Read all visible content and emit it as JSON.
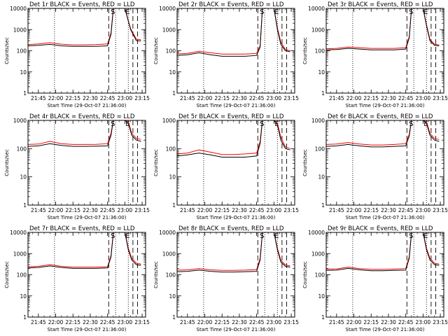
{
  "figure": {
    "background": "#ffffff",
    "colors": {
      "events": "#000000",
      "lld": "#ff0000",
      "axes": "#000000"
    }
  },
  "chart_data": [
    {
      "type": "line",
      "title": "Det 1r BLACK = Events, RED = LLD",
      "xlabel": "Start Time (29-Oct-07 21:36:00)",
      "ylabel": "Counts/sec",
      "yscale": "log",
      "ylim": [
        1,
        10000
      ],
      "x_ticks": [
        "21:45",
        "22:00",
        "22:15",
        "22:30",
        "22:45",
        "23:00",
        "23:15"
      ],
      "y_ticks": [
        "1",
        "10",
        "100",
        "1000",
        "10000"
      ],
      "markers": [
        "S",
        "E"
      ],
      "x": [
        "21:36",
        "21:45",
        "21:55",
        "22:05",
        "22:15",
        "22:25",
        "22:35",
        "22:45",
        "22:48",
        "22:50",
        "22:55",
        "22:57",
        "23:00",
        "23:05",
        "23:10",
        "23:14"
      ],
      "series": [
        {
          "name": "Events",
          "values": [
            170,
            180,
            200,
            170,
            160,
            160,
            162,
            170,
            600,
            10000,
            10000,
            10000,
            10000,
            1000,
            300,
            290
          ]
        },
        {
          "name": "LLD",
          "values": [
            195,
            210,
            240,
            205,
            190,
            190,
            195,
            210,
            700,
            10000,
            10000,
            10000,
            10000,
            1100,
            350,
            330
          ]
        }
      ],
      "dotted_lines_at": [
        "21:59",
        "22:52",
        "23:03"
      ],
      "dashed_lines_at": [
        "22:46",
        "23:07",
        "23:11"
      ]
    },
    {
      "type": "line",
      "title": "Det 2r BLACK = Events, RED = LLD",
      "xlabel": "Start Time (29-Oct-07 21:36:00)",
      "ylabel": "Counts/sec",
      "yscale": "log",
      "ylim": [
        1,
        10000
      ],
      "x_ticks": [
        "21:45",
        "22:00",
        "22:15",
        "22:30",
        "22:45",
        "23:00",
        "23:15"
      ],
      "y_ticks": [
        "1",
        "10",
        "100",
        "1000",
        "10000"
      ],
      "markers": [
        "S",
        "E"
      ],
      "x": [
        "21:36",
        "21:45",
        "21:55",
        "22:05",
        "22:15",
        "22:25",
        "22:35",
        "22:45",
        "22:48",
        "22:50",
        "22:55",
        "23:00",
        "23:03",
        "23:06",
        "23:10",
        "23:14"
      ],
      "series": [
        {
          "name": "Events",
          "values": [
            60,
            65,
            80,
            65,
            55,
            55,
            55,
            60,
            150,
            10000,
            10000,
            10000,
            1000,
            200,
            100,
            90
          ]
        },
        {
          "name": "LLD",
          "values": [
            70,
            75,
            95,
            80,
            70,
            70,
            70,
            75,
            170,
            10000,
            10000,
            10000,
            1200,
            250,
            115,
            100
          ]
        }
      ],
      "dotted_lines_at": [
        "21:59",
        "22:52",
        "23:03"
      ],
      "dashed_lines_at": [
        "22:46",
        "23:07",
        "23:11"
      ]
    },
    {
      "type": "line",
      "title": "Det 3r BLACK = Events, RED = LLD",
      "xlabel": "Start Time (29-Oct-07 21:36:00)",
      "ylabel": "Counts/sec",
      "yscale": "log",
      "ylim": [
        1,
        10000
      ],
      "x_ticks": [
        "21:45",
        "22:00",
        "22:15",
        "22:30",
        "22:45",
        "23:00",
        "23:15"
      ],
      "y_ticks": [
        "1",
        "10",
        "100",
        "1000",
        "10000"
      ],
      "markers": [
        "S",
        "E"
      ],
      "x": [
        "21:36",
        "21:45",
        "21:55",
        "22:05",
        "22:15",
        "22:25",
        "22:35",
        "22:45",
        "22:48",
        "22:50",
        "22:55",
        "23:00",
        "23:03",
        "23:06",
        "23:10",
        "23:14"
      ],
      "series": [
        {
          "name": "Events",
          "values": [
            110,
            115,
            130,
            120,
            110,
            110,
            110,
            120,
            400,
            10000,
            10000,
            10000,
            1500,
            300,
            180,
            170
          ]
        },
        {
          "name": "LLD",
          "values": [
            125,
            130,
            150,
            140,
            130,
            130,
            130,
            140,
            450,
            10000,
            10000,
            10000,
            1700,
            350,
            200,
            190
          ]
        }
      ],
      "dotted_lines_at": [
        "21:59",
        "22:52",
        "23:03"
      ],
      "dashed_lines_at": [
        "22:46",
        "23:07",
        "23:11"
      ]
    },
    {
      "type": "line",
      "title": "Det 4r BLACK = Events, RED = LLD",
      "xlabel": "Start Time (29-Oct-07 21:36:00)",
      "ylabel": "Counts/sec",
      "yscale": "log",
      "ylim": [
        1,
        1000
      ],
      "x_ticks": [
        "21:45",
        "22:00",
        "22:15",
        "22:30",
        "22:45",
        "23:00",
        "23:15"
      ],
      "y_ticks": [
        "1",
        "10",
        "100",
        "1000"
      ],
      "markers": [
        "S",
        "E"
      ],
      "x": [
        "21:36",
        "21:45",
        "21:55",
        "22:05",
        "22:15",
        "22:25",
        "22:35",
        "22:45",
        "22:48",
        "22:50",
        "22:55",
        "23:00",
        "23:03",
        "23:06",
        "23:10",
        "23:14"
      ],
      "series": [
        {
          "name": "Events",
          "values": [
            120,
            125,
            150,
            130,
            120,
            120,
            122,
            125,
            300,
            1000,
            1000,
            1000,
            800,
            300,
            200,
            180
          ]
        },
        {
          "name": "LLD",
          "values": [
            140,
            145,
            180,
            150,
            140,
            140,
            142,
            150,
            350,
            1000,
            1000,
            1000,
            900,
            350,
            230,
            210
          ]
        }
      ],
      "dotted_lines_at": [
        "21:59",
        "22:52",
        "23:03"
      ],
      "dashed_lines_at": [
        "22:46",
        "23:07",
        "23:11"
      ]
    },
    {
      "type": "line",
      "title": "Det 5r BLACK = Events, RED = LLD",
      "xlabel": "Start Time (29-Oct-07 21:36:00)",
      "ylabel": "Counts/sec",
      "yscale": "log",
      "ylim": [
        1,
        1000
      ],
      "x_ticks": [
        "21:45",
        "22:00",
        "22:15",
        "22:30",
        "22:45",
        "23:00",
        "23:15"
      ],
      "y_ticks": [
        "1",
        "10",
        "100",
        "1000"
      ],
      "markers": [
        "S",
        "E"
      ],
      "x": [
        "21:36",
        "21:45",
        "21:55",
        "22:05",
        "22:15",
        "22:25",
        "22:35",
        "22:45",
        "22:48",
        "22:50",
        "22:55",
        "23:00",
        "23:03",
        "23:06",
        "23:10",
        "23:14"
      ],
      "series": [
        {
          "name": "Events",
          "values": [
            55,
            60,
            70,
            60,
            50,
            50,
            50,
            55,
            150,
            1000,
            1000,
            1000,
            700,
            200,
            100,
            90
          ]
        },
        {
          "name": "LLD",
          "values": [
            65,
            70,
            90,
            75,
            62,
            62,
            65,
            70,
            180,
            1000,
            1000,
            1000,
            800,
            250,
            115,
            100
          ]
        }
      ],
      "dotted_lines_at": [
        "21:59",
        "22:52",
        "23:03"
      ],
      "dashed_lines_at": [
        "22:46",
        "23:07",
        "23:11"
      ]
    },
    {
      "type": "line",
      "title": "Det 6r BLACK = Events, RED = LLD",
      "xlabel": "Start Time (29-Oct-07 21:36:00)",
      "ylabel": "Counts/sec",
      "yscale": "log",
      "ylim": [
        1,
        1000
      ],
      "x_ticks": [
        "21:45",
        "22:00",
        "22:15",
        "22:30",
        "22:45",
        "23:00",
        "23:15"
      ],
      "y_ticks": [
        "1",
        "10",
        "100",
        "1000"
      ],
      "markers": [
        "S",
        "E"
      ],
      "x": [
        "21:36",
        "21:45",
        "21:55",
        "22:05",
        "22:15",
        "22:25",
        "22:35",
        "22:45",
        "22:48",
        "22:50",
        "22:55",
        "23:00",
        "23:03",
        "23:06",
        "23:10",
        "23:14"
      ],
      "series": [
        {
          "name": "Events",
          "values": [
            120,
            125,
            140,
            125,
            115,
            115,
            120,
            125,
            280,
            1000,
            1000,
            1000,
            800,
            300,
            200,
            180
          ]
        },
        {
          "name": "LLD",
          "values": [
            140,
            145,
            165,
            145,
            135,
            135,
            140,
            150,
            320,
            1000,
            1000,
            1000,
            900,
            350,
            230,
            210
          ]
        }
      ],
      "dotted_lines_at": [
        "21:59",
        "22:52",
        "23:03"
      ],
      "dashed_lines_at": [
        "22:46",
        "23:07",
        "23:11"
      ]
    },
    {
      "type": "line",
      "title": "Det 7r BLACK = Events, RED = LLD",
      "xlabel": "Start Time (29-Oct-07 21:36:00)",
      "ylabel": "Counts/sec",
      "yscale": "log",
      "ylim": [
        1,
        10000
      ],
      "x_ticks": [
        "21:45",
        "22:00",
        "22:15",
        "22:30",
        "22:45",
        "23:00",
        "23:15"
      ],
      "y_ticks": [
        "1",
        "10",
        "100",
        "1000",
        "10000"
      ],
      "markers": [
        "S",
        "E"
      ],
      "x": [
        "21:36",
        "21:45",
        "21:55",
        "22:05",
        "22:15",
        "22:25",
        "22:35",
        "22:45",
        "22:48",
        "22:50",
        "22:55",
        "23:00",
        "23:03",
        "23:06",
        "23:10",
        "23:14"
      ],
      "series": [
        {
          "name": "Events",
          "values": [
            210,
            220,
            260,
            220,
            200,
            200,
            200,
            210,
            700,
            10000,
            10000,
            10000,
            1500,
            500,
            300,
            280
          ]
        },
        {
          "name": "LLD",
          "values": [
            240,
            250,
            300,
            250,
            230,
            230,
            230,
            240,
            800,
            10000,
            10000,
            10000,
            1800,
            600,
            350,
            320
          ]
        }
      ],
      "dotted_lines_at": [
        "21:59",
        "22:52",
        "23:03"
      ],
      "dashed_lines_at": [
        "22:46",
        "23:07",
        "23:11"
      ]
    },
    {
      "type": "line",
      "title": "Det 8r BLACK = Events, RED = LLD",
      "xlabel": "Start Time (29-Oct-07 21:36:00)",
      "ylabel": "Counts/sec",
      "yscale": "log",
      "ylim": [
        1,
        10000
      ],
      "x_ticks": [
        "21:45",
        "22:00",
        "22:15",
        "22:30",
        "22:45",
        "23:00",
        "23:15"
      ],
      "y_ticks": [
        "1",
        "10",
        "100",
        "1000",
        "10000"
      ],
      "markers": [
        "S",
        "E"
      ],
      "x": [
        "21:36",
        "21:45",
        "21:55",
        "22:05",
        "22:15",
        "22:25",
        "22:35",
        "22:45",
        "22:48",
        "22:50",
        "22:55",
        "23:00",
        "23:03",
        "23:06",
        "23:10",
        "23:14"
      ],
      "series": [
        {
          "name": "Events",
          "values": [
            140,
            145,
            165,
            145,
            135,
            135,
            140,
            145,
            500,
            10000,
            10000,
            10000,
            1500,
            400,
            250,
            230
          ]
        },
        {
          "name": "LLD",
          "values": [
            165,
            170,
            195,
            170,
            160,
            160,
            165,
            175,
            600,
            10000,
            10000,
            10000,
            1800,
            480,
            290,
            260
          ]
        }
      ],
      "dotted_lines_at": [
        "21:59",
        "22:52",
        "23:03"
      ],
      "dashed_lines_at": [
        "22:46",
        "23:07",
        "23:11"
      ]
    },
    {
      "type": "line",
      "title": "Det 9r BLACK = Events, RED = LLD",
      "xlabel": "Start Time (29-Oct-07 21:36:00)",
      "ylabel": "Counts/sec",
      "yscale": "log",
      "ylim": [
        1,
        10000
      ],
      "x_ticks": [
        "21:45",
        "22:00",
        "22:15",
        "22:30",
        "22:45",
        "23:00",
        "23:15"
      ],
      "y_ticks": [
        "1",
        "10",
        "100",
        "1000",
        "10000"
      ],
      "markers": [
        "S",
        "E"
      ],
      "x": [
        "21:36",
        "21:45",
        "21:55",
        "22:05",
        "22:15",
        "22:25",
        "22:35",
        "22:45",
        "22:48",
        "22:50",
        "22:55",
        "23:00",
        "23:03",
        "23:06",
        "23:10",
        "23:14"
      ],
      "series": [
        {
          "name": "Events",
          "values": [
            160,
            165,
            200,
            170,
            155,
            155,
            160,
            165,
            600,
            10000,
            10000,
            10000,
            1500,
            500,
            300,
            280
          ]
        },
        {
          "name": "LLD",
          "values": [
            185,
            190,
            230,
            195,
            180,
            180,
            185,
            195,
            700,
            10000,
            10000,
            10000,
            1800,
            600,
            350,
            320
          ]
        }
      ],
      "dotted_lines_at": [
        "21:59",
        "22:52",
        "23:03"
      ],
      "dashed_lines_at": [
        "22:46",
        "23:07",
        "23:11"
      ]
    }
  ]
}
